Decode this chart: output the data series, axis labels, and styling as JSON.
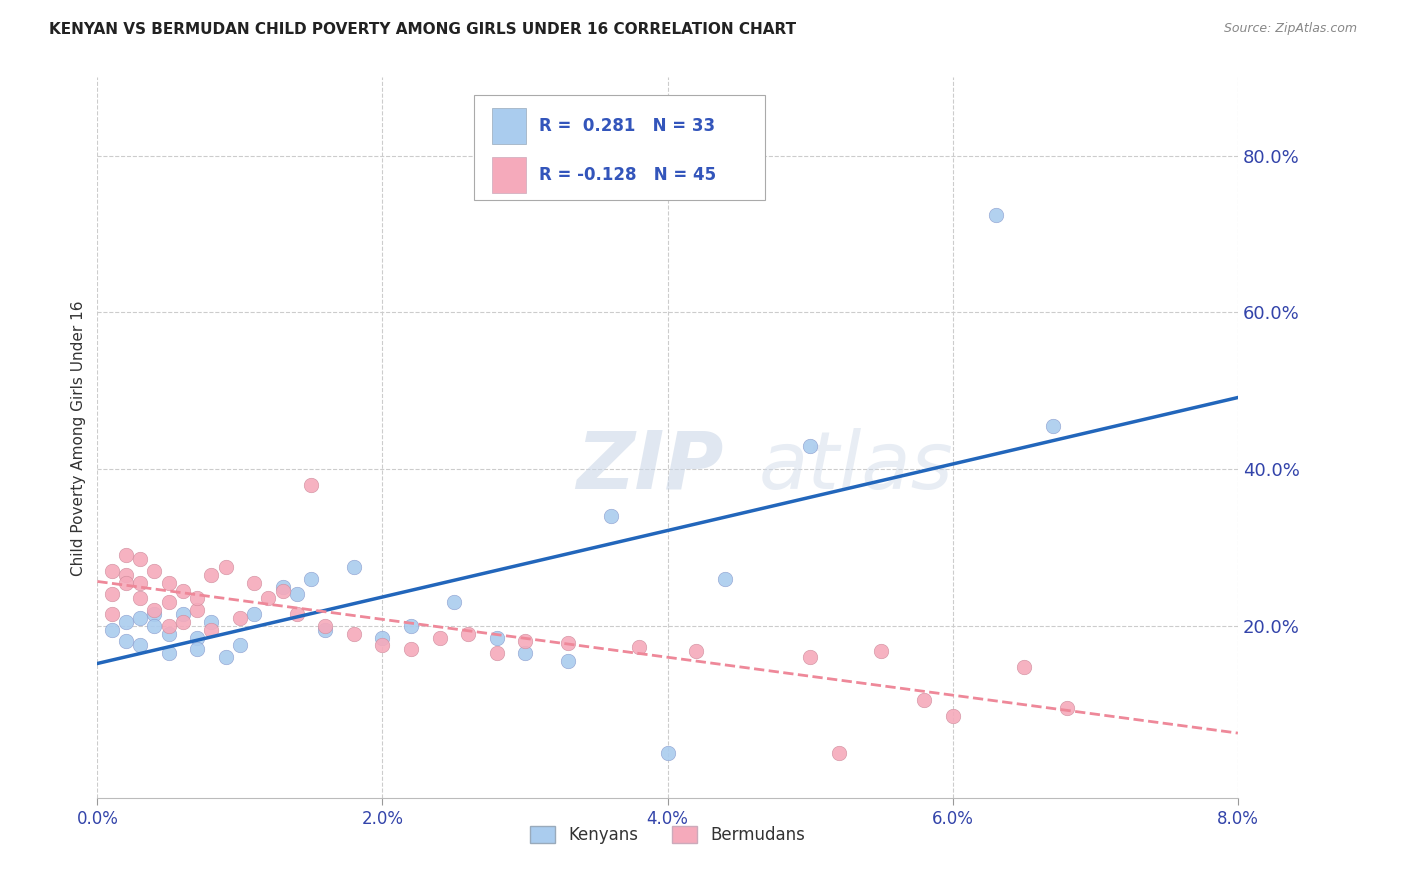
{
  "title": "KENYAN VS BERMUDAN CHILD POVERTY AMONG GIRLS UNDER 16 CORRELATION CHART",
  "source": "Source: ZipAtlas.com",
  "ylabel": "Child Poverty Among Girls Under 16",
  "xlim": [
    0.0,
    0.08
  ],
  "ylim": [
    -0.02,
    0.9
  ],
  "xtick_labels": [
    "0.0%",
    "2.0%",
    "4.0%",
    "6.0%",
    "8.0%"
  ],
  "xtick_vals": [
    0.0,
    0.02,
    0.04,
    0.06,
    0.08
  ],
  "ytick_labels": [
    "20.0%",
    "40.0%",
    "60.0%",
    "80.0%"
  ],
  "ytick_vals": [
    0.2,
    0.4,
    0.6,
    0.8
  ],
  "background_color": "#ffffff",
  "grid_color": "#cccccc",
  "kenya_color": "#aaccee",
  "bermuda_color": "#f5aabb",
  "kenya_line_color": "#2266bb",
  "bermuda_line_color": "#ee8899",
  "legend_kenya_R": "0.281",
  "legend_kenya_N": "33",
  "legend_bermuda_R": "-0.128",
  "legend_bermuda_N": "45",
  "watermark_zip": "ZIP",
  "watermark_atlas": "atlas",
  "kenya_x": [
    0.001,
    0.002,
    0.002,
    0.003,
    0.003,
    0.004,
    0.004,
    0.005,
    0.005,
    0.006,
    0.007,
    0.007,
    0.008,
    0.009,
    0.01,
    0.011,
    0.013,
    0.014,
    0.015,
    0.016,
    0.018,
    0.02,
    0.022,
    0.025,
    0.028,
    0.03,
    0.033,
    0.036,
    0.04,
    0.044,
    0.05,
    0.063,
    0.067
  ],
  "kenya_y": [
    0.195,
    0.205,
    0.18,
    0.21,
    0.175,
    0.215,
    0.2,
    0.19,
    0.165,
    0.215,
    0.185,
    0.17,
    0.205,
    0.16,
    0.175,
    0.215,
    0.25,
    0.24,
    0.26,
    0.195,
    0.275,
    0.185,
    0.2,
    0.23,
    0.185,
    0.165,
    0.155,
    0.34,
    0.038,
    0.26,
    0.43,
    0.725,
    0.455
  ],
  "bermuda_x": [
    0.001,
    0.001,
    0.001,
    0.002,
    0.002,
    0.002,
    0.003,
    0.003,
    0.003,
    0.004,
    0.004,
    0.005,
    0.005,
    0.005,
    0.006,
    0.006,
    0.007,
    0.007,
    0.008,
    0.008,
    0.009,
    0.01,
    0.011,
    0.012,
    0.013,
    0.014,
    0.015,
    0.016,
    0.018,
    0.02,
    0.022,
    0.024,
    0.026,
    0.028,
    0.03,
    0.033,
    0.038,
    0.042,
    0.05,
    0.052,
    0.055,
    0.058,
    0.06,
    0.065,
    0.068
  ],
  "bermuda_y": [
    0.215,
    0.24,
    0.27,
    0.29,
    0.265,
    0.255,
    0.285,
    0.255,
    0.235,
    0.22,
    0.27,
    0.23,
    0.255,
    0.2,
    0.245,
    0.205,
    0.22,
    0.235,
    0.195,
    0.265,
    0.275,
    0.21,
    0.255,
    0.235,
    0.245,
    0.215,
    0.38,
    0.2,
    0.19,
    0.175,
    0.17,
    0.185,
    0.19,
    0.165,
    0.18,
    0.178,
    0.173,
    0.168,
    0.16,
    0.038,
    0.168,
    0.105,
    0.085,
    0.148,
    0.095
  ]
}
